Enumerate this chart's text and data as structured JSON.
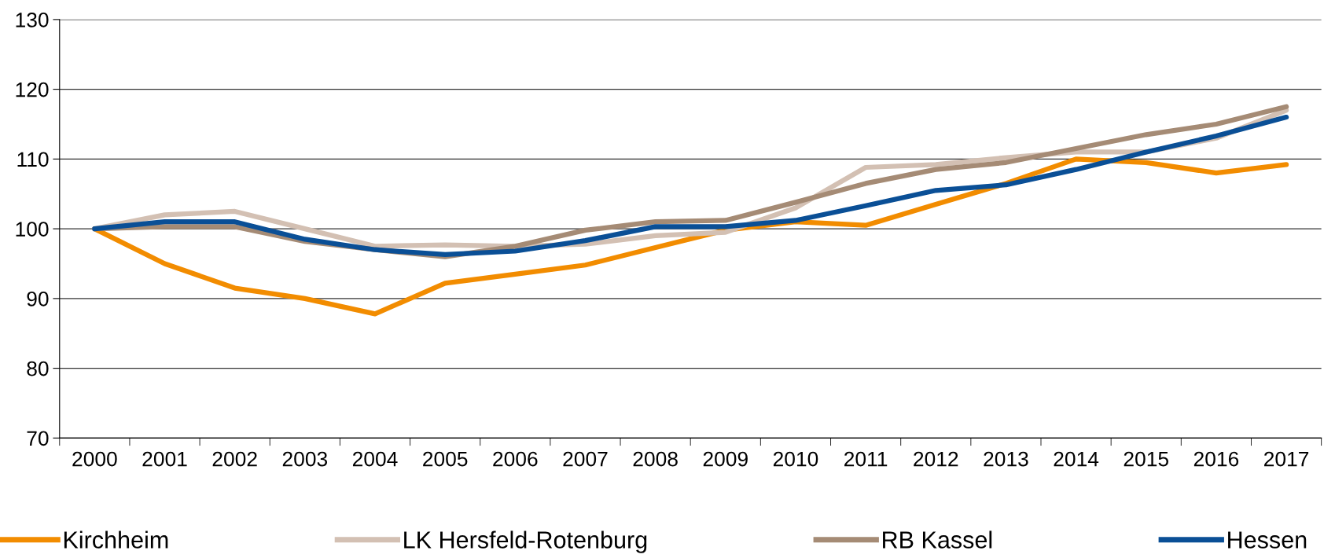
{
  "chart_data": {
    "type": "line",
    "categories": [
      "2000",
      "2001",
      "2002",
      "2003",
      "2004",
      "2005",
      "2006",
      "2007",
      "2008",
      "2009",
      "2010",
      "2011",
      "2012",
      "2013",
      "2014",
      "2015",
      "2016",
      "2017"
    ],
    "series": [
      {
        "name": "Kirchheim",
        "color": "#f28c00",
        "values": [
          100,
          95,
          91.5,
          90,
          87.8,
          92.2,
          93.5,
          94.8,
          97.3,
          99.8,
          101,
          100.5,
          103.5,
          106.5,
          110,
          109.5,
          108,
          109.2
        ]
      },
      {
        "name": "LK Hersfeld-Rotenburg",
        "color": "#d3c0b3",
        "values": [
          100,
          102,
          102.5,
          100,
          97.5,
          97.7,
          97.5,
          97.8,
          99,
          99.5,
          103,
          108.8,
          109.2,
          110.2,
          111,
          111,
          113,
          117
        ]
      },
      {
        "name": "RB Kassel",
        "color": "#a58b75",
        "values": [
          100,
          100.3,
          100.3,
          98.2,
          97,
          96,
          97.5,
          99.8,
          101,
          101.2,
          103.8,
          106.5,
          108.5,
          109.5,
          111.5,
          113.5,
          115,
          117.5
        ]
      },
      {
        "name": "Hessen",
        "color": "#0a4f96",
        "values": [
          100,
          101,
          101,
          98.5,
          97,
          96.3,
          96.8,
          98.3,
          100.3,
          100.3,
          101.2,
          103.3,
          105.5,
          106.3,
          108.5,
          111,
          113.3,
          116
        ]
      }
    ],
    "ylim": [
      70,
      130
    ],
    "yticks": [
      70,
      80,
      90,
      100,
      110,
      120,
      130
    ],
    "grid": "y",
    "legend": "bottom",
    "marker": "none",
    "line_style": "solid"
  }
}
